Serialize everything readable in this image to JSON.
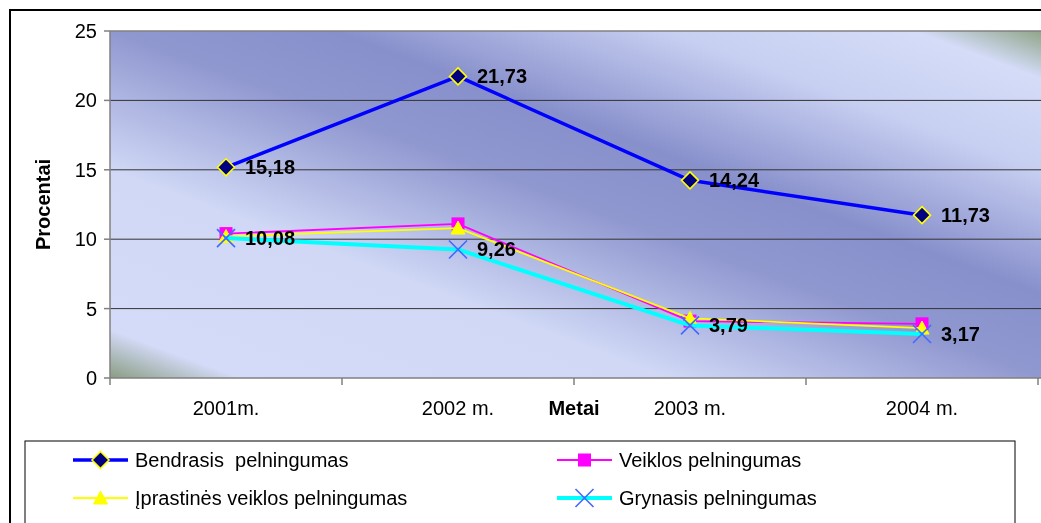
{
  "chart_data": {
    "type": "line",
    "xlabel": "Metai",
    "ylabel": "Procentai",
    "categories": [
      "2001m.",
      "2002 m.",
      "2003 m.",
      "2004 m."
    ],
    "ylim": [
      0,
      25
    ],
    "yticks": [
      0,
      5,
      10,
      15,
      20,
      25
    ],
    "grid": "y",
    "legend": "bottom",
    "line_style": "solid",
    "series": [
      {
        "name": "Bendrasis  pelningumas",
        "color": "#0000ff",
        "marker": "diamond",
        "values": [
          15.18,
          21.73,
          14.24,
          11.73
        ],
        "value_labels": [
          "15,18",
          "21,73",
          "14,24",
          "11,73"
        ]
      },
      {
        "name": "Veiklos pelningumas",
        "color": "#ff00ff",
        "marker": "square",
        "values": [
          10.4,
          11.1,
          4.1,
          3.9
        ]
      },
      {
        "name": "Įprastinės veiklos pelningumas",
        "color": "#ffff00",
        "marker": "triangle",
        "values": [
          10.2,
          10.8,
          4.3,
          3.6
        ]
      },
      {
        "name": "Grynasis pelningumas",
        "color": "#00ffff",
        "marker": "cross",
        "values": [
          10.08,
          9.26,
          3.79,
          3.17
        ],
        "value_labels": [
          "10,08",
          "9,26",
          "3,79",
          "3,17"
        ]
      }
    ]
  }
}
